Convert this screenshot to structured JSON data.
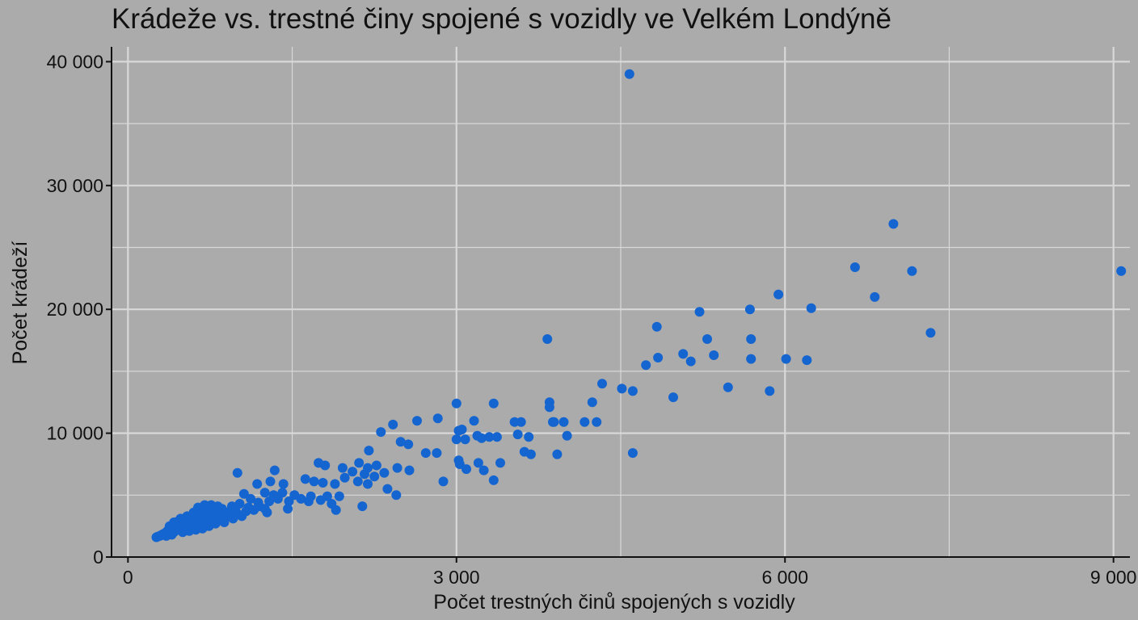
{
  "chart_data": {
    "type": "scatter",
    "title": "Krádeže vs. trestné činy spojené s vozidly ve Velkém Londýně",
    "xlabel": "Počet trestných činů spojených s vozidly",
    "ylabel": "Počet krádeží",
    "xlim": [
      -150,
      9150
    ],
    "ylim": [
      0,
      41200
    ],
    "xticks": [
      0,
      3000,
      6000,
      9000
    ],
    "xtick_labels": [
      "0",
      "3 000",
      "6 000",
      "9 000"
    ],
    "yticks": [
      0,
      10000,
      20000,
      30000,
      40000
    ],
    "ytick_labels": [
      "0",
      "10 000",
      "20 000",
      "30 000",
      "40 000"
    ],
    "minor_grid_x": [
      1500,
      4500,
      7500
    ],
    "minor_grid_y": [
      5000,
      15000,
      25000,
      35000
    ],
    "grid": true,
    "legend": "none",
    "colors": {
      "point": "#1565d0",
      "background": "#ababab",
      "grid": "#d8d8d8",
      "axis": "#111111"
    },
    "points": [
      [
        4580,
        39000
      ],
      [
        6990,
        26900
      ],
      [
        9070,
        23100
      ],
      [
        7160,
        23100
      ],
      [
        6640,
        23400
      ],
      [
        6820,
        21000
      ],
      [
        7330,
        18100
      ],
      [
        5940,
        21200
      ],
      [
        6240,
        20100
      ],
      [
        5680,
        20000
      ],
      [
        5220,
        19800
      ],
      [
        4830,
        18600
      ],
      [
        3830,
        17600
      ],
      [
        5290,
        17600
      ],
      [
        5690,
        17600
      ],
      [
        5070,
        16400
      ],
      [
        5350,
        16300
      ],
      [
        5690,
        16000
      ],
      [
        6010,
        16000
      ],
      [
        6200,
        15900
      ],
      [
        4840,
        16100
      ],
      [
        5140,
        15800
      ],
      [
        4730,
        15500
      ],
      [
        5480,
        13700
      ],
      [
        5860,
        13400
      ],
      [
        4980,
        12900
      ],
      [
        4330,
        14000
      ],
      [
        4510,
        13600
      ],
      [
        4610,
        13400
      ],
      [
        3850,
        12500
      ],
      [
        3850,
        12100
      ],
      [
        4240,
        12500
      ],
      [
        3000,
        12400
      ],
      [
        3340,
        12400
      ],
      [
        2830,
        11200
      ],
      [
        2640,
        11000
      ],
      [
        2420,
        10700
      ],
      [
        2310,
        10100
      ],
      [
        3160,
        11000
      ],
      [
        3530,
        10900
      ],
      [
        3590,
        10900
      ],
      [
        3890,
        10900
      ],
      [
        3880,
        10900
      ],
      [
        3980,
        10900
      ],
      [
        4170,
        10900
      ],
      [
        4280,
        10900
      ],
      [
        3050,
        10300
      ],
      [
        3020,
        10200
      ],
      [
        3190,
        9800
      ],
      [
        3230,
        9600
      ],
      [
        3300,
        9700
      ],
      [
        3370,
        9700
      ],
      [
        3560,
        9900
      ],
      [
        3660,
        9700
      ],
      [
        4010,
        9800
      ],
      [
        3000,
        9500
      ],
      [
        3080,
        9500
      ],
      [
        2560,
        9100
      ],
      [
        2490,
        9300
      ],
      [
        2200,
        8600
      ],
      [
        2720,
        8400
      ],
      [
        2820,
        8400
      ],
      [
        3620,
        8500
      ],
      [
        3680,
        8300
      ],
      [
        3920,
        8300
      ],
      [
        4610,
        8400
      ],
      [
        3020,
        7800
      ],
      [
        3200,
        7600
      ],
      [
        3400,
        7600
      ],
      [
        3030,
        7500
      ],
      [
        3090,
        7100
      ],
      [
        3250,
        7000
      ],
      [
        2110,
        7600
      ],
      [
        2190,
        7200
      ],
      [
        2270,
        7400
      ],
      [
        2460,
        7200
      ],
      [
        1960,
        7200
      ],
      [
        2050,
        6900
      ],
      [
        2160,
        6700
      ],
      [
        2250,
        6500
      ],
      [
        2340,
        6800
      ],
      [
        2570,
        7000
      ],
      [
        2880,
        6100
      ],
      [
        3340,
        6200
      ],
      [
        1980,
        6400
      ],
      [
        2100,
        6100
      ],
      [
        2190,
        5900
      ],
      [
        2370,
        5500
      ],
      [
        2450,
        5000
      ],
      [
        2140,
        4100
      ],
      [
        1000,
        6800
      ],
      [
        1340,
        7000
      ],
      [
        1740,
        7600
      ],
      [
        1800,
        7400
      ],
      [
        1620,
        6300
      ],
      [
        1700,
        6100
      ],
      [
        1780,
        6000
      ],
      [
        1890,
        5900
      ],
      [
        1420,
        5900
      ],
      [
        1300,
        6100
      ],
      [
        1180,
        5900
      ],
      [
        1250,
        5200
      ],
      [
        1330,
        5000
      ],
      [
        1410,
        5200
      ],
      [
        1520,
        5000
      ],
      [
        1670,
        4900
      ],
      [
        1820,
        4900
      ],
      [
        1930,
        4900
      ],
      [
        1060,
        5100
      ],
      [
        1120,
        4700
      ],
      [
        1190,
        4400
      ],
      [
        1290,
        4500
      ],
      [
        1370,
        4700
      ],
      [
        1470,
        4500
      ],
      [
        1580,
        4700
      ],
      [
        1650,
        4500
      ],
      [
        1760,
        4600
      ],
      [
        1860,
        4300
      ],
      [
        1900,
        3800
      ],
      [
        1460,
        3900
      ],
      [
        1270,
        3600
      ],
      [
        1150,
        3800
      ],
      [
        1080,
        3700
      ],
      [
        980,
        3800
      ],
      [
        900,
        3600
      ],
      [
        820,
        3300
      ],
      [
        870,
        3000
      ],
      [
        780,
        2900
      ],
      [
        730,
        2600
      ],
      [
        690,
        3000
      ],
      [
        640,
        2700
      ],
      [
        600,
        2500
      ],
      [
        560,
        2700
      ],
      [
        520,
        2400
      ],
      [
        480,
        2600
      ],
      [
        450,
        2200
      ],
      [
        420,
        2000
      ],
      [
        390,
        2300
      ],
      [
        360,
        2100
      ],
      [
        330,
        1900
      ],
      [
        310,
        1800
      ],
      [
        290,
        1700
      ],
      [
        270,
        1650
      ],
      [
        260,
        1600
      ],
      [
        350,
        1700
      ],
      [
        400,
        1800
      ],
      [
        500,
        2000
      ],
      [
        560,
        2100
      ],
      [
        620,
        2200
      ],
      [
        680,
        2300
      ],
      [
        740,
        2500
      ],
      [
        800,
        2700
      ],
      [
        880,
        2800
      ],
      [
        960,
        3100
      ],
      [
        1040,
        3300
      ],
      [
        1000,
        3500
      ],
      [
        940,
        3700
      ],
      [
        860,
        3900
      ],
      [
        780,
        3600
      ],
      [
        720,
        3800
      ],
      [
        660,
        3500
      ],
      [
        640,
        4000
      ],
      [
        700,
        4200
      ],
      [
        600,
        3600
      ],
      [
        540,
        3300
      ],
      [
        480,
        3100
      ],
      [
        420,
        2800
      ],
      [
        380,
        2500
      ],
      [
        460,
        2900
      ],
      [
        520,
        3000
      ],
      [
        590,
        3100
      ],
      [
        650,
        3200
      ],
      [
        710,
        3400
      ],
      [
        770,
        3100
      ],
      [
        830,
        3500
      ],
      [
        900,
        3300
      ],
      [
        950,
        4100
      ],
      [
        1020,
        4300
      ],
      [
        1100,
        4000
      ],
      [
        1200,
        4100
      ],
      [
        1250,
        3900
      ],
      [
        760,
        4200
      ],
      [
        820,
        4100
      ],
      [
        680,
        3700
      ],
      [
        610,
        2900
      ],
      [
        550,
        2600
      ],
      [
        490,
        2300
      ],
      [
        430,
        2100
      ],
      [
        370,
        1900
      ],
      [
        300,
        1750
      ]
    ]
  }
}
